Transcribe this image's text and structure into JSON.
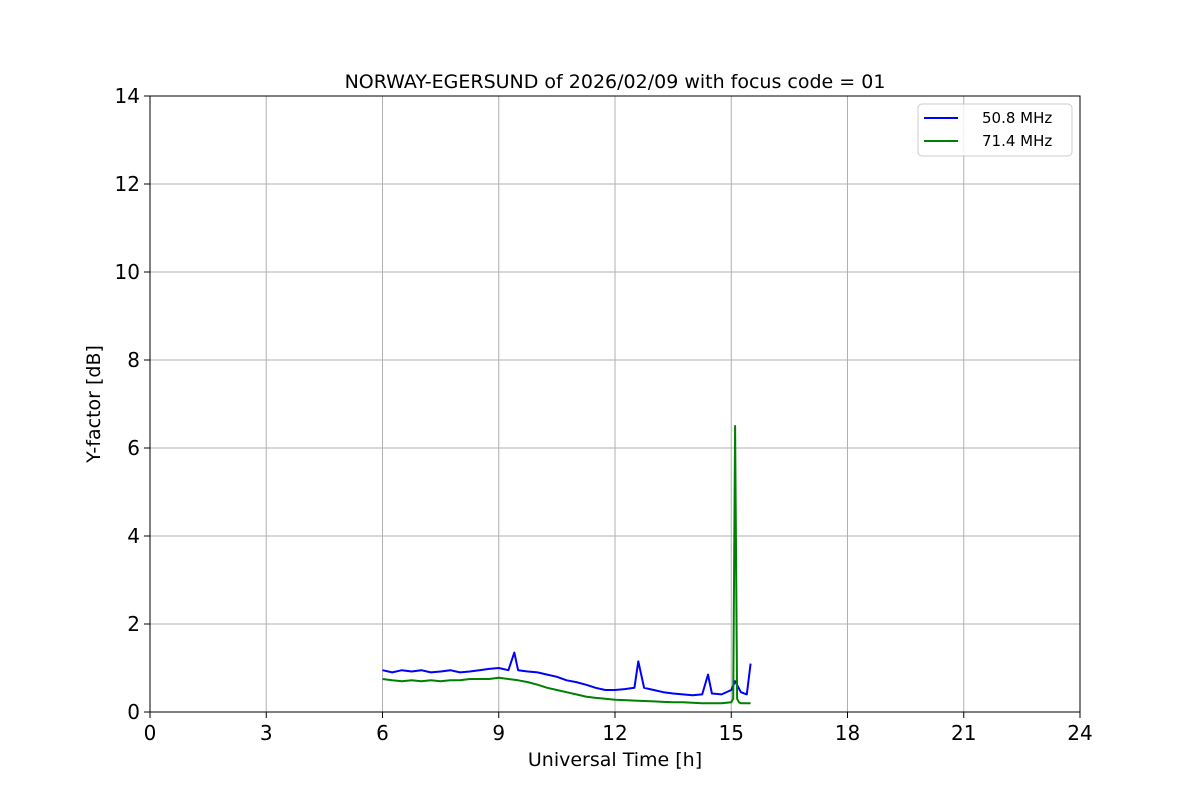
{
  "chart_data": {
    "type": "line",
    "title": "NORWAY-EGERSUND of 2026/02/09 with focus code = 01",
    "xlabel": "Universal Time [h]",
    "ylabel": "Y-factor [dB]",
    "xlim": [
      0,
      24
    ],
    "ylim": [
      0,
      14
    ],
    "xticks": [
      0,
      3,
      6,
      9,
      12,
      15,
      18,
      21,
      24
    ],
    "yticks": [
      0,
      2,
      4,
      6,
      8,
      10,
      12,
      14
    ],
    "grid": true,
    "legend_position": "top-right",
    "series": [
      {
        "name": "50.8 MHz",
        "color": "#0000ff",
        "x": [
          6.0,
          6.25,
          6.5,
          6.75,
          7.0,
          7.25,
          7.5,
          7.75,
          8.0,
          8.25,
          8.5,
          8.75,
          9.0,
          9.25,
          9.4,
          9.5,
          9.75,
          10.0,
          10.25,
          10.5,
          10.75,
          11.0,
          11.25,
          11.5,
          11.75,
          12.0,
          12.25,
          12.5,
          12.6,
          12.75,
          13.0,
          13.25,
          13.5,
          13.75,
          14.0,
          14.25,
          14.4,
          14.5,
          14.75,
          15.0,
          15.1,
          15.25,
          15.4,
          15.5
        ],
        "y": [
          0.95,
          0.9,
          0.95,
          0.92,
          0.95,
          0.9,
          0.92,
          0.95,
          0.9,
          0.92,
          0.95,
          0.98,
          1.0,
          0.95,
          1.35,
          0.95,
          0.92,
          0.9,
          0.85,
          0.8,
          0.72,
          0.68,
          0.62,
          0.55,
          0.5,
          0.5,
          0.52,
          0.55,
          1.15,
          0.55,
          0.5,
          0.45,
          0.42,
          0.4,
          0.38,
          0.4,
          0.85,
          0.42,
          0.4,
          0.5,
          0.7,
          0.45,
          0.4,
          1.1
        ]
      },
      {
        "name": "71.4 MHz",
        "color": "#008000",
        "x": [
          6.0,
          6.25,
          6.5,
          6.75,
          7.0,
          7.25,
          7.5,
          7.75,
          8.0,
          8.25,
          8.5,
          8.75,
          9.0,
          9.25,
          9.5,
          9.75,
          10.0,
          10.25,
          10.5,
          10.75,
          11.0,
          11.25,
          11.5,
          11.75,
          12.0,
          12.25,
          12.5,
          12.75,
          13.0,
          13.25,
          13.5,
          13.75,
          14.0,
          14.25,
          14.5,
          14.75,
          15.0,
          15.05,
          15.1,
          15.15,
          15.2,
          15.25,
          15.5
        ],
        "y": [
          0.75,
          0.72,
          0.7,
          0.72,
          0.7,
          0.72,
          0.7,
          0.72,
          0.72,
          0.75,
          0.75,
          0.75,
          0.78,
          0.75,
          0.72,
          0.68,
          0.62,
          0.55,
          0.5,
          0.45,
          0.4,
          0.35,
          0.32,
          0.3,
          0.28,
          0.27,
          0.26,
          0.25,
          0.24,
          0.23,
          0.22,
          0.22,
          0.21,
          0.2,
          0.2,
          0.2,
          0.22,
          0.3,
          6.5,
          0.3,
          0.22,
          0.2,
          0.2
        ]
      }
    ]
  }
}
